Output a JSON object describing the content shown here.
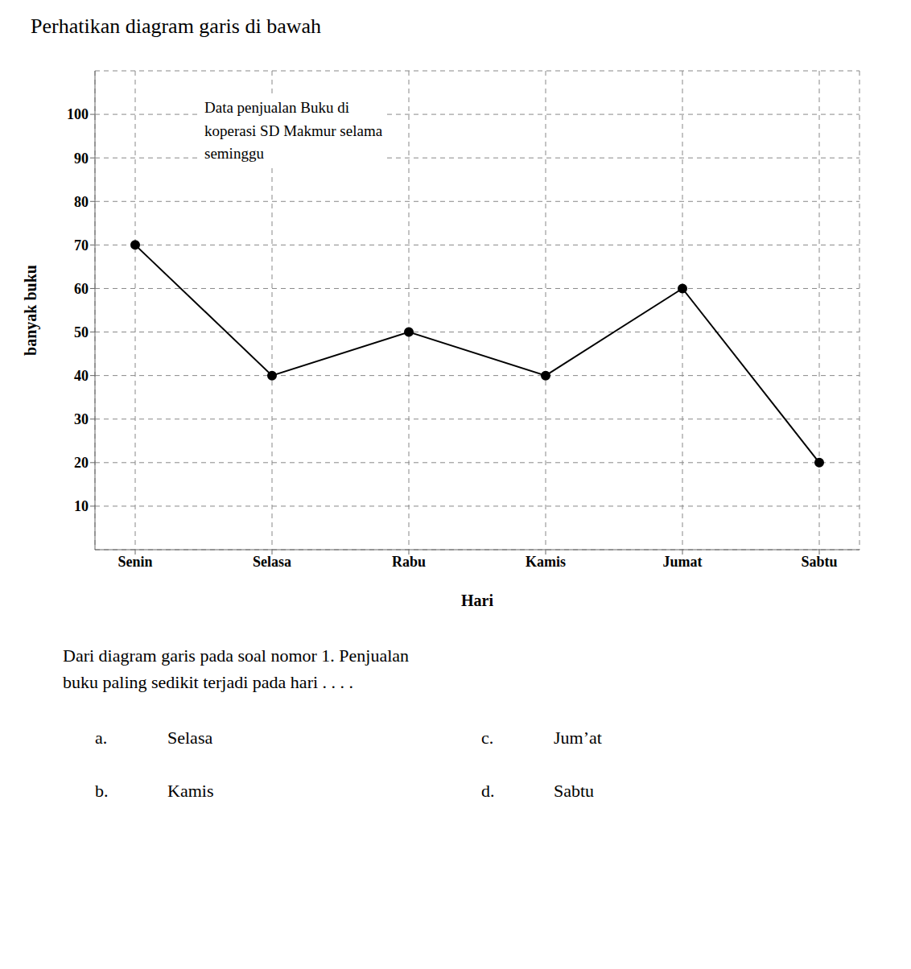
{
  "chart_data": {
    "type": "line",
    "title": "Perhatikan diagram garis di bawah",
    "x_label": "Hari",
    "y_label": "banyak buku",
    "categories": [
      "Senin",
      "Selasa",
      "Rabu",
      "Kamis",
      "Jumat",
      "Sabtu"
    ],
    "values": [
      70,
      40,
      50,
      40,
      60,
      20
    ],
    "color": "#000000",
    "marker": "circle",
    "ylim": [
      0,
      110
    ],
    "yticks": [
      10,
      20,
      30,
      40,
      50,
      60,
      70,
      80,
      90,
      100
    ],
    "grid": true,
    "annotations": [
      "Data penjualan Buku di\nkoperasi SD Makmur selama\nseminggu",
      "Dari diagram garis pada soal nomor 1. Penjualan\nbuku paling sedikit terjadi pada hari . . . .",
      "a.",
      "Selasa",
      "c.",
      "Jum’at",
      "b.",
      "Kamis",
      "d.",
      "Sabtu"
    ]
  }
}
